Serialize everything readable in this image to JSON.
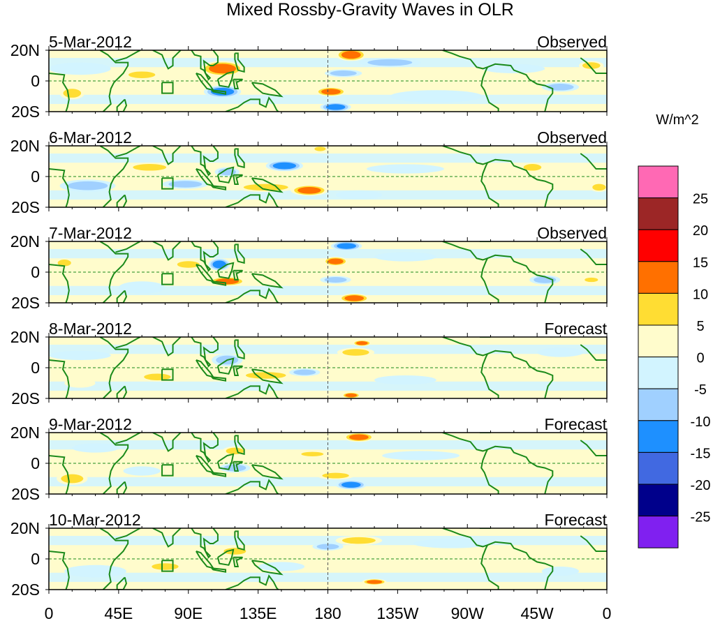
{
  "chart_data": {
    "type": "heatmap",
    "title": "Mixed Rossby-Gravity Waves in OLR",
    "units_label": "W/m^2",
    "x_ticks": [
      "0",
      "45E",
      "90E",
      "135E",
      "180",
      "135W",
      "90W",
      "45W",
      "0"
    ],
    "x_tick_lons": [
      0,
      45,
      90,
      135,
      180,
      225,
      270,
      315,
      360
    ],
    "y_ticks": [
      "20N",
      "0",
      "20S"
    ],
    "lon_range": [
      0,
      360
    ],
    "lat_range": [
      -20,
      20
    ],
    "colorbar": {
      "labels": [
        "25",
        "20",
        "15",
        "10",
        "5",
        "0",
        "-5",
        "-10",
        "-15",
        "-20",
        "-25"
      ],
      "colors": [
        "#ff69b4",
        "#9c2626",
        "#ff0000",
        "#ff7000",
        "#ffdd33",
        "#fffccc",
        "#d2f4ff",
        "#a0d0ff",
        "#1e90ff",
        "#4169e1",
        "#00008b",
        "#8020f0"
      ]
    },
    "panels": [
      {
        "date": "5-Mar-2012",
        "label": "Observed",
        "features": [
          [
            112,
            8,
            14,
            5,
            13
          ],
          [
            112,
            -7,
            12,
            4,
            -13
          ],
          [
            195,
            17,
            10,
            4,
            12
          ],
          [
            182,
            -7,
            10,
            3,
            12
          ],
          [
            185,
            -17,
            10,
            3,
            -12
          ],
          [
            190,
            5,
            12,
            2.5,
            -9
          ],
          [
            60,
            4,
            12,
            3,
            6
          ],
          [
            15,
            -8,
            8,
            4,
            6
          ],
          [
            220,
            12,
            20,
            3,
            -6
          ],
          [
            330,
            -4,
            12,
            3,
            -7
          ],
          [
            350,
            10,
            8,
            3,
            6
          ],
          [
            20,
            8,
            20,
            4,
            -4
          ],
          [
            250,
            -10,
            30,
            4,
            -4
          ],
          [
            300,
            8,
            20,
            3,
            -3
          ]
        ]
      },
      {
        "date": "6-Mar-2012",
        "label": "Observed",
        "features": [
          [
            152,
            7,
            12,
            3.5,
            -12
          ],
          [
            168,
            -9,
            12,
            3.5,
            13
          ],
          [
            140,
            -7,
            20,
            3,
            6
          ],
          [
            88,
            -5,
            15,
            3,
            -8
          ],
          [
            65,
            6,
            15,
            3,
            7
          ],
          [
            115,
            3,
            8,
            3,
            -8
          ],
          [
            312,
            6,
            8,
            3,
            6
          ],
          [
            355,
            -7,
            6,
            3,
            7
          ],
          [
            175,
            18,
            5,
            2,
            8
          ],
          [
            25,
            -6,
            18,
            4,
            -6
          ],
          [
            230,
            5,
            25,
            3,
            -4
          ],
          [
            200,
            -12,
            15,
            3,
            -5
          ]
        ]
      },
      {
        "date": "7-Mar-2012",
        "label": "Observed",
        "features": [
          [
            110,
            5,
            7,
            4,
            -13
          ],
          [
            115,
            -6,
            12,
            3,
            13
          ],
          [
            185,
            7,
            8,
            3,
            11
          ],
          [
            192,
            17,
            10,
            3,
            -12
          ],
          [
            197,
            -17,
            10,
            3,
            13
          ],
          [
            185,
            -5,
            10,
            2.5,
            -8
          ],
          [
            90,
            5,
            10,
            3,
            6
          ],
          [
            10,
            6,
            6,
            3,
            6
          ],
          [
            320,
            -5,
            10,
            3,
            -7
          ],
          [
            230,
            10,
            20,
            3,
            -4
          ],
          [
            60,
            -10,
            15,
            4,
            -5
          ],
          [
            350,
            -5,
            6,
            2,
            7
          ]
        ]
      },
      {
        "date": "8-Mar-2012",
        "label": "Forecast",
        "features": [
          [
            198,
            10,
            12,
            3,
            7
          ],
          [
            202,
            16,
            6,
            2,
            11
          ],
          [
            140,
            -5,
            18,
            3,
            6
          ],
          [
            115,
            5,
            10,
            4,
            -8
          ],
          [
            70,
            -6,
            12,
            3,
            7
          ],
          [
            165,
            -3,
            10,
            2.5,
            -8
          ],
          [
            195,
            -18,
            6,
            2,
            11
          ],
          [
            230,
            -8,
            20,
            3,
            -4
          ],
          [
            20,
            8,
            20,
            3,
            -4
          ],
          [
            330,
            10,
            15,
            3,
            -4
          ],
          [
            20,
            -10,
            10,
            3,
            5
          ]
        ]
      },
      {
        "date": "9-Mar-2012",
        "label": "Forecast",
        "features": [
          [
            200,
            17,
            10,
            3,
            12
          ],
          [
            120,
            8,
            8,
            3,
            7
          ],
          [
            120,
            -3,
            10,
            3,
            -9
          ],
          [
            195,
            -14,
            10,
            3,
            -12
          ],
          [
            185,
            -8,
            12,
            2.5,
            6
          ],
          [
            15,
            -10,
            10,
            4,
            6
          ],
          [
            60,
            -5,
            12,
            3,
            -5
          ],
          [
            240,
            5,
            25,
            3,
            -4
          ],
          [
            30,
            10,
            15,
            3,
            -4
          ],
          [
            170,
            6,
            10,
            2,
            6
          ]
        ]
      },
      {
        "date": "10-Mar-2012",
        "label": "Forecast",
        "features": [
          [
            200,
            12,
            15,
            3,
            7
          ],
          [
            180,
            8,
            10,
            2.5,
            -8
          ],
          [
            120,
            5,
            10,
            3,
            6
          ],
          [
            210,
            -15,
            8,
            2,
            11
          ],
          [
            75,
            -5,
            12,
            3,
            6
          ],
          [
            150,
            -5,
            15,
            3,
            -5
          ],
          [
            30,
            -8,
            20,
            4,
            -4
          ],
          [
            260,
            10,
            25,
            3,
            -4
          ],
          [
            330,
            -8,
            12,
            3,
            -4
          ]
        ]
      }
    ]
  }
}
